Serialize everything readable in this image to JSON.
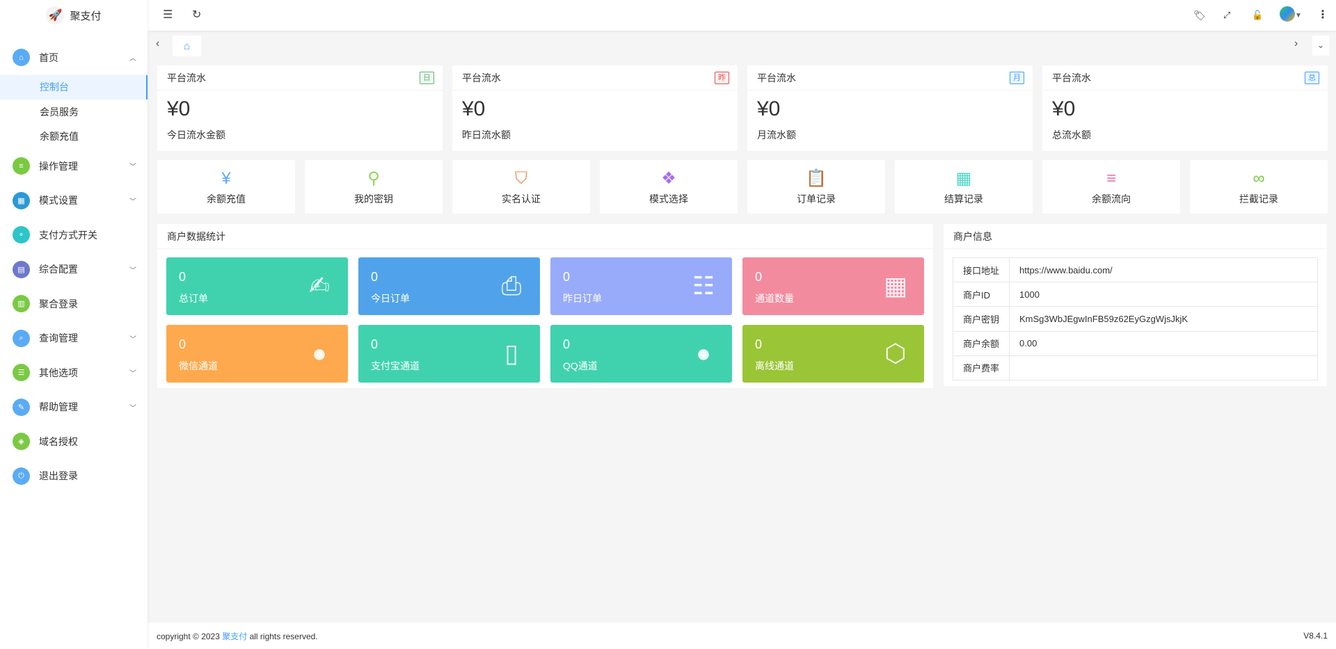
{
  "brand": {
    "name": "聚支付"
  },
  "sidebar": {
    "items": [
      {
        "label": "首页",
        "icon": "home-icon",
        "color": "#5aabf5",
        "expanded": true,
        "children": [
          "控制台",
          "会员服务",
          "余额充值"
        ],
        "active_child": "控制台"
      },
      {
        "label": "操作管理",
        "icon": "sliders-icon",
        "color": "#7ac943",
        "has_children": true
      },
      {
        "label": "模式设置",
        "icon": "grid-icon",
        "color": "#2b9ad6",
        "has_children": true
      },
      {
        "label": "支付方式开关",
        "icon": "toggle-icon",
        "color": "#2cc5c9"
      },
      {
        "label": "综合配置",
        "icon": "book-icon",
        "color": "#6e78cc",
        "has_children": true
      },
      {
        "label": "聚合登录",
        "icon": "login-icon",
        "color": "#7ac943"
      },
      {
        "label": "查询管理",
        "icon": "search-icon",
        "color": "#5aabf5",
        "has_children": true
      },
      {
        "label": "其他选项",
        "icon": "list-icon",
        "color": "#7ac943",
        "has_children": true
      },
      {
        "label": "帮助管理",
        "icon": "edit-icon",
        "color": "#5aabf5",
        "has_children": true
      },
      {
        "label": "域名授权",
        "icon": "shield-icon",
        "color": "#7ac943"
      },
      {
        "label": "退出登录",
        "icon": "power-icon",
        "color": "#5aabf5"
      }
    ]
  },
  "stats": [
    {
      "title": "平台流水",
      "badge": "日",
      "badge_color": "#5fb878",
      "value": "¥0",
      "label": "今日流水金额"
    },
    {
      "title": "平台流水",
      "badge": "昨",
      "badge_color": "#e05050",
      "value": "¥0",
      "label": "昨日流水额"
    },
    {
      "title": "平台流水",
      "badge": "月",
      "badge_color": "#409eff",
      "value": "¥0",
      "label": "月流水额"
    },
    {
      "title": "平台流水",
      "badge": "总",
      "badge_color": "#409eff",
      "value": "¥0",
      "label": "总流水额"
    }
  ],
  "quick": [
    {
      "label": "余额充值",
      "icon": "yen-icon",
      "color": "#5aabf5"
    },
    {
      "label": "我的密钥",
      "icon": "key-icon",
      "color": "#8fd65a"
    },
    {
      "label": "实名认证",
      "icon": "shield-check-icon",
      "color": "#f0884a"
    },
    {
      "label": "模式选择",
      "icon": "apps-icon",
      "color": "#a56cf0"
    },
    {
      "label": "订单记录",
      "icon": "clipboard-icon",
      "color": "#f5d27a"
    },
    {
      "label": "结算记录",
      "icon": "calendar-icon",
      "color": "#4dd6c8"
    },
    {
      "label": "余额流向",
      "icon": "sliders-icon",
      "color": "#f07ab0"
    },
    {
      "label": "拦截记录",
      "icon": "infinity-icon",
      "color": "#7ac943"
    }
  ],
  "merchant_stats": {
    "title": "商户数据统计",
    "tiles": [
      {
        "value": "0",
        "label": "总订单",
        "icon": "question-edit-icon",
        "color": "#40d2ae"
      },
      {
        "value": "0",
        "label": "今日订单",
        "icon": "printer-icon",
        "color": "#50a3ea"
      },
      {
        "value": "0",
        "label": "昨日订单",
        "icon": "document-list-icon",
        "color": "#98abfb"
      },
      {
        "value": "0",
        "label": "通道数量",
        "icon": "calendar-icon",
        "color": "#f38b9f"
      },
      {
        "value": "0",
        "label": "微信通道",
        "icon": "wechat-icon",
        "color": "#fea94d"
      },
      {
        "value": "0",
        "label": "支付宝通道",
        "icon": "phone-icon",
        "color": "#40d2ae"
      },
      {
        "value": "0",
        "label": "QQ通道",
        "icon": "qq-icon",
        "color": "#40d2ae"
      },
      {
        "value": "0",
        "label": "离线通道",
        "icon": "cube-icon",
        "color": "#9ac537"
      }
    ]
  },
  "merchant_info": {
    "title": "商户信息",
    "rows": [
      {
        "key": "接口地址",
        "value": "https://www.baidu.com/"
      },
      {
        "key": "商户ID",
        "value": "1000"
      },
      {
        "key": "商户密钥",
        "value": "KmSg3WbJEgwInFB59z62EyGzgWjsJkjK"
      },
      {
        "key": "商户余额",
        "value": "0.00"
      },
      {
        "key": "商户费率",
        "value": ""
      }
    ]
  },
  "footer": {
    "prefix": "copyright © 2023 ",
    "link": "聚支付",
    "suffix": " all rights reserved.",
    "version": "V8.4.1"
  }
}
